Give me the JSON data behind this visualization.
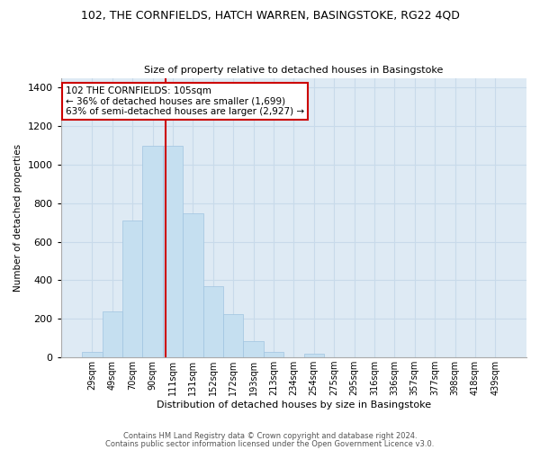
{
  "title": "102, THE CORNFIELDS, HATCH WARREN, BASINGSTOKE, RG22 4QD",
  "subtitle": "Size of property relative to detached houses in Basingstoke",
  "xlabel": "Distribution of detached houses by size in Basingstoke",
  "ylabel": "Number of detached properties",
  "bar_labels": [
    "29sqm",
    "49sqm",
    "70sqm",
    "90sqm",
    "111sqm",
    "131sqm",
    "152sqm",
    "172sqm",
    "193sqm",
    "213sqm",
    "234sqm",
    "254sqm",
    "275sqm",
    "295sqm",
    "316sqm",
    "336sqm",
    "357sqm",
    "377sqm",
    "398sqm",
    "418sqm",
    "439sqm"
  ],
  "bar_values": [
    30,
    240,
    710,
    1100,
    1100,
    750,
    370,
    225,
    85,
    30,
    0,
    20,
    0,
    0,
    0,
    0,
    0,
    0,
    0,
    0,
    0
  ],
  "bar_color": "#c5dff0",
  "bar_edge_color": "#a0c4e0",
  "vline_color": "#cc0000",
  "annotation_text": "102 THE CORNFIELDS: 105sqm\n← 36% of detached houses are smaller (1,699)\n63% of semi-detached houses are larger (2,927) →",
  "annotation_box_color": "#ffffff",
  "annotation_box_edge": "#cc0000",
  "ylim": [
    0,
    1450
  ],
  "yticks": [
    0,
    200,
    400,
    600,
    800,
    1000,
    1200,
    1400
  ],
  "footer1": "Contains HM Land Registry data © Crown copyright and database right 2024.",
  "footer2": "Contains public sector information licensed under the Open Government Licence v3.0.",
  "grid_color": "#c8daea",
  "plot_bg_color": "#deeaf4",
  "fig_bg_color": "#ffffff"
}
